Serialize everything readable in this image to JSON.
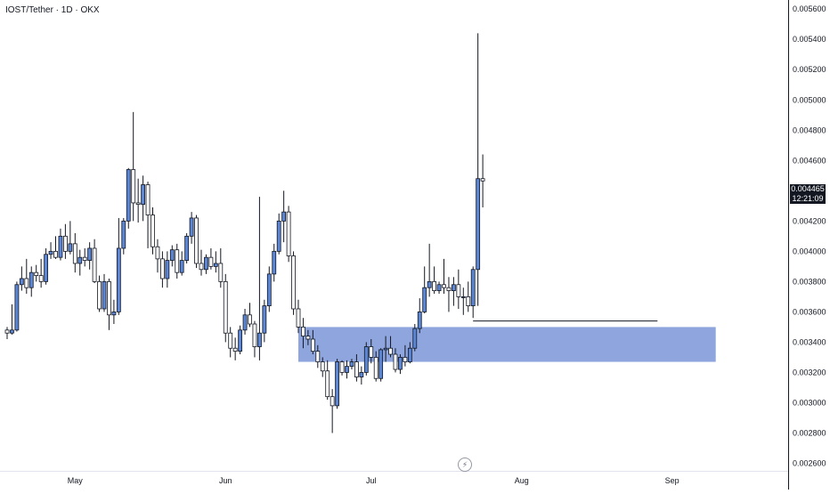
{
  "title": "IOST/Tether · 1D · OKX",
  "last_price": {
    "value": "0.004465",
    "countdown": "12:21:09",
    "bg": "#131722"
  },
  "colors": {
    "candle": "#5b87d6",
    "candle_border": "#131722",
    "zone": "#8ea6dd",
    "line": "#131722"
  },
  "chart_data": {
    "type": "candlestick",
    "x_ticks": [
      "May",
      "Jun",
      "Jul",
      "Aug",
      "Sep"
    ],
    "y_ticks": [
      "0.005600",
      "0.005400",
      "0.005200",
      "0.005000",
      "0.004800",
      "0.004600",
      "0.004400",
      "0.004200",
      "0.004000",
      "0.003800",
      "0.003600",
      "0.003400",
      "0.003200",
      "0.003000",
      "0.002800",
      "0.002600"
    ],
    "ylim": [
      0.00255,
      0.00566
    ],
    "first_date": "2024-04-17",
    "candles": [
      [
        0.00348,
        0.0035,
        0.00342,
        0.00346
      ],
      [
        0.00346,
        0.00365,
        0.00345,
        0.00348
      ],
      [
        0.00348,
        0.0038,
        0.00347,
        0.00378
      ],
      [
        0.00378,
        0.0039,
        0.00374,
        0.00382
      ],
      [
        0.00382,
        0.00395,
        0.00372,
        0.00376
      ],
      [
        0.00376,
        0.0039,
        0.0037,
        0.00386
      ],
      [
        0.00386,
        0.00391,
        0.0038,
        0.00384
      ],
      [
        0.00384,
        0.00395,
        0.00376,
        0.0038
      ],
      [
        0.0038,
        0.00402,
        0.00378,
        0.00398
      ],
      [
        0.00398,
        0.00406,
        0.00395,
        0.004
      ],
      [
        0.004,
        0.0041,
        0.00395,
        0.00396
      ],
      [
        0.00396,
        0.00415,
        0.00394,
        0.0041
      ],
      [
        0.0041,
        0.00418,
        0.00395,
        0.004
      ],
      [
        0.004,
        0.0042,
        0.00398,
        0.00405
      ],
      [
        0.00405,
        0.00412,
        0.00386,
        0.00392
      ],
      [
        0.00392,
        0.00401,
        0.00384,
        0.00396
      ],
      [
        0.00396,
        0.00402,
        0.0039,
        0.00394
      ],
      [
        0.00394,
        0.00406,
        0.00388,
        0.00402
      ],
      [
        0.00402,
        0.00408,
        0.00379,
        0.0038
      ],
      [
        0.0038,
        0.00384,
        0.0036,
        0.00362
      ],
      [
        0.00362,
        0.00385,
        0.0036,
        0.0038
      ],
      [
        0.0038,
        0.00382,
        0.00348,
        0.00358
      ],
      [
        0.00358,
        0.00368,
        0.00352,
        0.0036
      ],
      [
        0.0036,
        0.00422,
        0.00358,
        0.00402
      ],
      [
        0.00402,
        0.00422,
        0.00398,
        0.0042
      ],
      [
        0.0042,
        0.00455,
        0.00415,
        0.00454
      ],
      [
        0.00454,
        0.00492,
        0.0042,
        0.00432
      ],
      [
        0.00432,
        0.00448,
        0.00419,
        0.00431
      ],
      [
        0.00431,
        0.0045,
        0.0042,
        0.00444
      ],
      [
        0.00444,
        0.00446,
        0.00402,
        0.00424
      ],
      [
        0.00424,
        0.00429,
        0.00398,
        0.00403
      ],
      [
        0.00403,
        0.00408,
        0.00386,
        0.00395
      ],
      [
        0.00395,
        0.004,
        0.00376,
        0.00382
      ],
      [
        0.00382,
        0.004,
        0.00376,
        0.00394
      ],
      [
        0.00394,
        0.00404,
        0.0039,
        0.00401
      ],
      [
        0.00401,
        0.00405,
        0.00382,
        0.00386
      ],
      [
        0.00386,
        0.004,
        0.00384,
        0.00394
      ],
      [
        0.00394,
        0.00412,
        0.00392,
        0.0041
      ],
      [
        0.0041,
        0.00426,
        0.00405,
        0.00422
      ],
      [
        0.00422,
        0.00424,
        0.00389,
        0.00392
      ],
      [
        0.00392,
        0.00401,
        0.00384,
        0.00388
      ],
      [
        0.00388,
        0.00398,
        0.00385,
        0.00396
      ],
      [
        0.00396,
        0.00402,
        0.00388,
        0.0039
      ],
      [
        0.0039,
        0.004,
        0.00386,
        0.00392
      ],
      [
        0.00392,
        0.00402,
        0.00376,
        0.0038
      ],
      [
        0.0038,
        0.00385,
        0.0034,
        0.00346
      ],
      [
        0.00346,
        0.0035,
        0.0033,
        0.00336
      ],
      [
        0.00336,
        0.00343,
        0.00328,
        0.00334
      ],
      [
        0.00334,
        0.00351,
        0.00332,
        0.00348
      ],
      [
        0.00348,
        0.00362,
        0.00345,
        0.00358
      ],
      [
        0.00358,
        0.00366,
        0.0035,
        0.00352
      ],
      [
        0.00352,
        0.00354,
        0.0033,
        0.00337
      ],
      [
        0.00337,
        0.00436,
        0.00328,
        0.00346
      ],
      [
        0.00346,
        0.00368,
        0.0034,
        0.00364
      ],
      [
        0.00364,
        0.0039,
        0.0036,
        0.00385
      ],
      [
        0.00385,
        0.00405,
        0.0038,
        0.004
      ],
      [
        0.004,
        0.00425,
        0.00398,
        0.0042
      ],
      [
        0.0042,
        0.0044,
        0.00406,
        0.00426
      ],
      [
        0.00426,
        0.0043,
        0.00393,
        0.00397
      ],
      [
        0.00397,
        0.004,
        0.00358,
        0.00362
      ],
      [
        0.00362,
        0.00368,
        0.00346,
        0.0035
      ],
      [
        0.0035,
        0.00356,
        0.00336,
        0.00344
      ],
      [
        0.00344,
        0.00348,
        0.00338,
        0.00342
      ],
      [
        0.00342,
        0.00348,
        0.00332,
        0.00334
      ],
      [
        0.00334,
        0.00338,
        0.00323,
        0.00327
      ],
      [
        0.00327,
        0.0033,
        0.00317,
        0.00321
      ],
      [
        0.00321,
        0.00328,
        0.00302,
        0.00304
      ],
      [
        0.00304,
        0.00309,
        0.0028,
        0.00298
      ],
      [
        0.00298,
        0.00329,
        0.00296,
        0.00327
      ],
      [
        0.00327,
        0.00328,
        0.00318,
        0.0032
      ],
      [
        0.0032,
        0.00328,
        0.00316,
        0.00324
      ],
      [
        0.00324,
        0.00329,
        0.00322,
        0.00327
      ],
      [
        0.00327,
        0.00332,
        0.00314,
        0.00317
      ],
      [
        0.00317,
        0.00324,
        0.00312,
        0.0032
      ],
      [
        0.0032,
        0.0034,
        0.00318,
        0.00337
      ],
      [
        0.00337,
        0.00342,
        0.00326,
        0.0033
      ],
      [
        0.0033,
        0.00334,
        0.00314,
        0.00316
      ],
      [
        0.00316,
        0.00336,
        0.00314,
        0.00335
      ],
      [
        0.00335,
        0.00344,
        0.00327,
        0.00336
      ],
      [
        0.00336,
        0.00344,
        0.0033,
        0.00332
      ],
      [
        0.00332,
        0.00336,
        0.0032,
        0.00322
      ],
      [
        0.00322,
        0.00332,
        0.00319,
        0.0033
      ],
      [
        0.0033,
        0.00338,
        0.00324,
        0.00327
      ],
      [
        0.00327,
        0.0034,
        0.00326,
        0.00336
      ],
      [
        0.00336,
        0.00352,
        0.00334,
        0.00349
      ],
      [
        0.00349,
        0.00369,
        0.00346,
        0.0036
      ],
      [
        0.0036,
        0.0039,
        0.00359,
        0.00376
      ],
      [
        0.00376,
        0.00405,
        0.0037,
        0.0038
      ],
      [
        0.0038,
        0.0039,
        0.00372,
        0.00374
      ],
      [
        0.00374,
        0.0038,
        0.00372,
        0.00378
      ],
      [
        0.00378,
        0.00395,
        0.00372,
        0.00376
      ],
      [
        0.00376,
        0.00383,
        0.0036,
        0.00374
      ],
      [
        0.00374,
        0.00383,
        0.00364,
        0.00378
      ],
      [
        0.00378,
        0.00388,
        0.00362,
        0.0037
      ],
      [
        0.0037,
        0.00376,
        0.00358,
        0.0037
      ],
      [
        0.0037,
        0.0038,
        0.0036,
        0.00364
      ],
      [
        0.00364,
        0.0039,
        0.00356,
        0.00388
      ],
      [
        0.00388,
        0.00544,
        0.00364,
        0.00448
      ],
      [
        0.00448,
        0.00464,
        0.00429,
        0.004465
      ]
    ],
    "zone": {
      "x_start": "2024-06-16",
      "x_end": "2024-09-10",
      "y_high": 0.0035,
      "y_low": 0.00327
    },
    "h_line": {
      "x_start": "2024-07-22",
      "x_end": "2024-08-29",
      "y": 0.00354
    }
  }
}
